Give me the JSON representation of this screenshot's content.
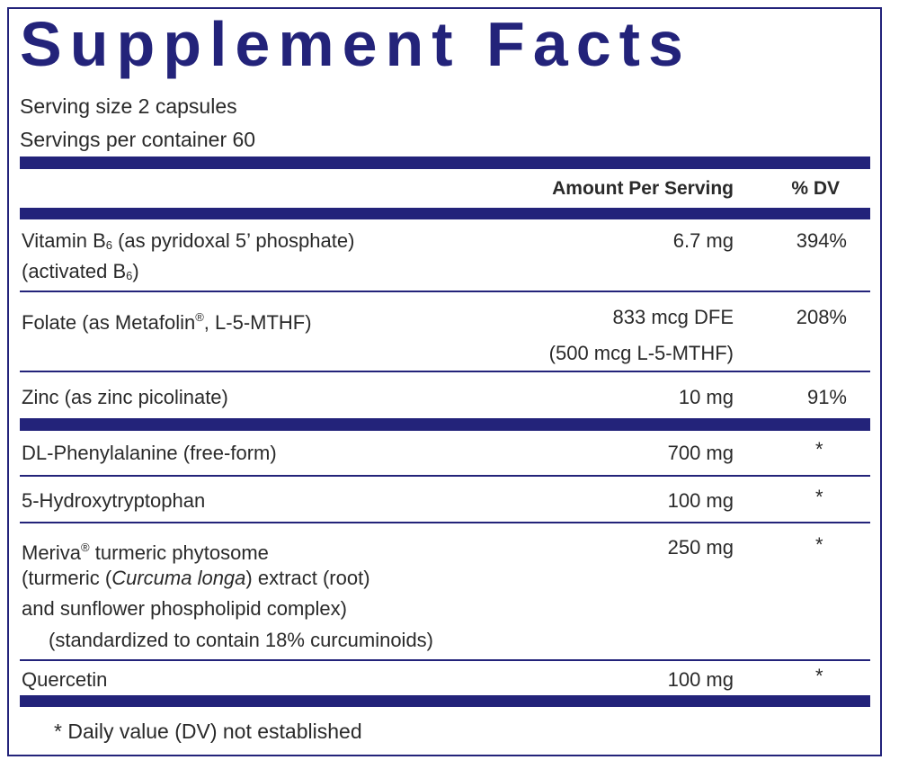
{
  "title": "Supplement Facts",
  "serving_size": "Serving size  2 capsules",
  "servings_per_container": "Servings per container  60",
  "header": {
    "amount": "Amount Per Serving",
    "dv": "% DV"
  },
  "rows": [
    {
      "name_1a": "Vitamin B",
      "name_1sub": "6",
      "name_1b": " (as pyridoxal 5’ phosphate)",
      "name_2a": "(activated B",
      "name_2sub": "6",
      "name_2b": ")",
      "amount": "6.7 mg",
      "dv": "394%"
    },
    {
      "name_a": "Folate (as Metafolin",
      "name_sup": "®",
      "name_b": ", L-5-MTHF)",
      "amount": "833 mcg DFE",
      "amount_2": "(500 mcg L-5-MTHF)",
      "dv": "208%"
    },
    {
      "name": "Zinc (as zinc picolinate)",
      "amount": "10 mg",
      "dv": "91%"
    },
    {
      "name": "DL-Phenylalanine (free-form)",
      "amount": "700 mg",
      "dv": "*"
    },
    {
      "name": "5-Hydroxytryptophan",
      "amount": "100 mg",
      "dv": "*"
    },
    {
      "name_a": "Meriva",
      "name_sup": "®",
      "name_b": " turmeric phytosome",
      "line2_a": "(turmeric (",
      "line2_i": "Curcuma longa",
      "line2_b": ") extract (root)",
      "line3": "and sunflower phospholipid complex)",
      "line4": "(standardized to contain 18% curcuminoids)",
      "amount": "250 mg",
      "dv": "*"
    },
    {
      "name": "Quercetin",
      "amount": "100 mg",
      "dv": "*"
    }
  ],
  "footnote": "* Daily value (DV) not established"
}
